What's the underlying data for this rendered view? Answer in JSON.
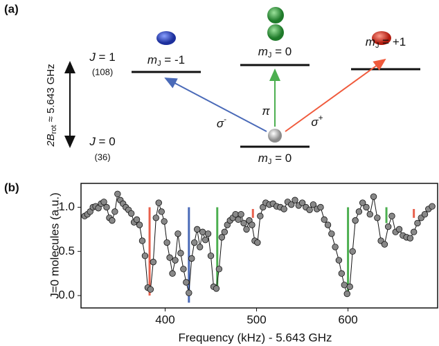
{
  "diagram": {
    "panel_label": "(a)",
    "upper_label": {
      "base": "J",
      "rest": " = 1"
    },
    "upper_count": "(108)",
    "lower_label": {
      "base": "J",
      "rest": " = 0"
    },
    "lower_count": "(36)",
    "splitting": {
      "base": "2B",
      "sub": "rot",
      "rest": " ≈ 5.643 GHz"
    },
    "states": [
      {
        "base": "m",
        "sub": "J",
        "rest": " = -1"
      },
      {
        "base": "m",
        "sub": "J",
        "rest": " = 0"
      },
      {
        "base": "m",
        "sub": "J",
        "rest": " = +1"
      },
      {
        "base": "m",
        "sub": "J",
        "rest": " = 0"
      }
    ],
    "transitions": [
      {
        "base": "σ",
        "sup": "-"
      },
      {
        "base": "π"
      },
      {
        "base": "σ",
        "sup": "+"
      }
    ]
  },
  "chart_data": {
    "type": "line",
    "panel_label": "(b)",
    "x_label": "Frequency (kHz) - 5.643 GHz",
    "y_label": "J=0 molecules (a.u.)",
    "color": "#888888",
    "xlim": [
      308,
      698
    ],
    "ylim": [
      -0.14,
      1.27
    ],
    "xticks": [
      400,
      500,
      600
    ],
    "yticks": [
      {
        "value": 0,
        "label": "0.0"
      },
      0.5,
      {
        "value": 1,
        "label": "1.0"
      }
    ],
    "x": [
      312,
      315,
      318,
      321,
      324,
      327,
      330,
      333,
      336,
      339,
      342,
      345,
      348,
      351,
      354,
      357,
      360,
      363,
      366,
      369,
      372,
      375,
      378,
      381,
      384,
      387,
      390,
      393,
      396,
      399,
      402,
      405,
      408,
      411,
      414,
      417,
      420,
      423,
      426,
      429,
      432,
      435,
      438,
      441,
      444,
      447,
      450,
      453,
      456,
      459,
      462,
      465,
      468,
      471,
      474,
      477,
      480,
      483,
      486,
      489,
      492,
      495,
      498,
      501,
      504,
      507,
      510,
      514,
      518,
      522,
      526,
      530,
      534,
      538,
      542,
      546,
      550,
      554,
      558,
      562,
      566,
      570,
      574,
      578,
      582,
      586,
      590,
      593,
      596,
      599,
      602,
      605,
      608,
      612,
      616,
      620,
      624,
      628,
      632,
      636,
      640,
      644,
      648,
      652,
      656,
      660,
      664,
      668,
      672,
      676,
      680,
      684,
      688,
      692
    ],
    "values": [
      0.9,
      0.92,
      0.95,
      1.0,
      1.01,
      0.99,
      1.04,
      1.06,
      1.0,
      0.88,
      0.85,
      0.95,
      1.15,
      1.08,
      1.04,
      1.0,
      0.97,
      0.93,
      0.83,
      0.86,
      0.8,
      0.62,
      0.45,
      0.09,
      0.07,
      0.38,
      0.88,
      1.05,
      0.95,
      0.84,
      0.6,
      0.43,
      0.25,
      0.4,
      0.7,
      0.48,
      0.3,
      0.15,
      0.03,
      0.42,
      0.6,
      0.75,
      0.55,
      0.72,
      0.63,
      0.7,
      0.45,
      0.1,
      0.08,
      0.3,
      0.66,
      0.72,
      0.8,
      0.85,
      0.88,
      0.92,
      0.86,
      0.92,
      0.82,
      0.75,
      0.85,
      0.8,
      0.62,
      0.6,
      0.9,
      1.0,
      1.05,
      1.03,
      1.04,
      1.01,
      1.0,
      0.98,
      1.06,
      1.03,
      1.08,
      1.02,
      1.05,
      1.0,
      0.97,
      1.03,
      0.98,
      1.0,
      0.86,
      0.8,
      0.7,
      0.55,
      0.4,
      0.25,
      0.12,
      0.02,
      0.1,
      0.5,
      0.85,
      0.95,
      1.05,
      1.0,
      0.92,
      1.12,
      0.88,
      0.62,
      0.58,
      0.78,
      0.9,
      0.72,
      0.75,
      0.68,
      0.66,
      0.65,
      0.72,
      0.82,
      0.88,
      0.92,
      0.98,
      1.01
    ],
    "lines": [
      {
        "x": 383,
        "top": 1.0,
        "bottom": 0.0,
        "color": "#e8604c"
      },
      {
        "x": 426,
        "top": 1.0,
        "bottom": -0.08,
        "color": "#4a6ab8"
      },
      {
        "x": 457,
        "top": 1.0,
        "bottom": 0.05,
        "color": "#4caf50"
      },
      {
        "x": 496,
        "top": 0.98,
        "bottom": 0.88,
        "color": "#e8604c"
      },
      {
        "x": 600,
        "top": 1.0,
        "bottom": 0.0,
        "color": "#4caf50"
      },
      {
        "x": 642,
        "top": 1.0,
        "bottom": 0.82,
        "color": "#4caf50"
      },
      {
        "x": 672,
        "top": 0.98,
        "bottom": 0.88,
        "color": "#e8604c"
      }
    ]
  }
}
